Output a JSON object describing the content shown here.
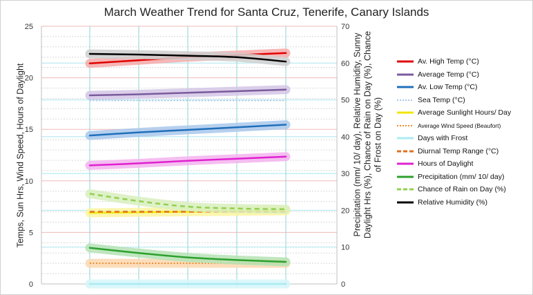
{
  "chart_data": {
    "type": "line",
    "title": "March Weather Trend for Santa Cruz, Tenerife, Canary Islands",
    "ylabel_left": "Temps, Sun Hrs,  Wind Speed,  Hours of Daylight",
    "ylabel_right": "Precipitation (mm/ 10/ day), Relative Humidity, Sunny Daylight  Hrs (%), Chance of Rain on Day (%), Chance of Frost on Day (%)",
    "ylim_left": [
      0,
      25
    ],
    "ylim_right": [
      0,
      70
    ],
    "yticks_left": [
      "0",
      "5",
      "10",
      "15",
      "20",
      "25"
    ],
    "yticks_right": [
      "0",
      "10",
      "20",
      "30",
      "40",
      "50",
      "60",
      "70"
    ],
    "x": [
      0,
      1,
      2,
      3,
      4
    ],
    "legend_position": "right",
    "series": [
      {
        "name": "Av. High Temp (°C)",
        "axis": "left",
        "color": "#e00000",
        "style": "solid",
        "glow": "#f7a9a9",
        "values": [
          21.4,
          21.7,
          22.0,
          22.2,
          22.4
        ]
      },
      {
        "name": "Average Temp (°C)",
        "axis": "left",
        "color": "#7a5a9c",
        "style": "solid",
        "glow": "#d3c5e6",
        "values": [
          18.3,
          18.4,
          18.55,
          18.7,
          18.85
        ]
      },
      {
        "name": "Av. Low Temp (°C)",
        "axis": "left",
        "color": "#1f6fba",
        "style": "solid",
        "glow": "#a9c8ec",
        "values": [
          14.4,
          14.7,
          14.95,
          15.2,
          15.45
        ]
      },
      {
        "name": "Sea Temp (°C)",
        "axis": "left",
        "color": "#a9c6e8",
        "style": "dotted",
        "glow": "",
        "values": [
          17.8,
          17.8,
          17.8,
          17.8,
          17.8
        ]
      },
      {
        "name": "Average Sunlight Hours/ Day",
        "axis": "left",
        "color": "#f2e600",
        "style": "solid",
        "glow": "#fbf5a0",
        "values": [
          6.9,
          6.95,
          7.0,
          7.05,
          7.1
        ]
      },
      {
        "name": "Average Wind Speed (Beaufort)",
        "axis": "left",
        "color": "#f08a24",
        "style": "dotted",
        "glow": "#fbd7b0",
        "values": [
          2.0,
          2.0,
          2.0,
          2.0,
          2.0
        ]
      },
      {
        "name": "Days with Frost",
        "axis": "left",
        "color": "#a8ecf2",
        "style": "solid",
        "glow": "#d6f6f9",
        "values": [
          0,
          0,
          0,
          0,
          0
        ]
      },
      {
        "name": "Diurnal Temp Range (°C)",
        "axis": "left",
        "color": "#e07020",
        "style": "dashed",
        "glow": "",
        "values": [
          7.0,
          7.0,
          7.0,
          7.0,
          7.0
        ]
      },
      {
        "name": "Hours of Daylight",
        "axis": "left",
        "color": "#e020d0",
        "style": "solid",
        "glow": "#f3b3ee",
        "values": [
          11.5,
          11.7,
          11.95,
          12.15,
          12.35
        ]
      },
      {
        "name": "Precipitation (mm/ 10/ day)",
        "axis": "right",
        "color": "#2ca02c",
        "style": "solid",
        "glow": "#b5e3b5",
        "values": [
          9.8,
          8.4,
          7.2,
          6.5,
          6.0
        ]
      },
      {
        "name": "Chance of Rain on Day (%)",
        "axis": "right",
        "color": "#92d050",
        "style": "dashed",
        "glow": "#d8efbd",
        "values": [
          24.5,
          22.5,
          21.0,
          20.5,
          20.3
        ]
      },
      {
        "name": "Relative Humidity (%)",
        "axis": "right",
        "color": "#000000",
        "style": "solid",
        "glow": "#cfcfcf",
        "values": [
          62.5,
          62.3,
          62.0,
          61.6,
          60.4
        ]
      }
    ]
  }
}
